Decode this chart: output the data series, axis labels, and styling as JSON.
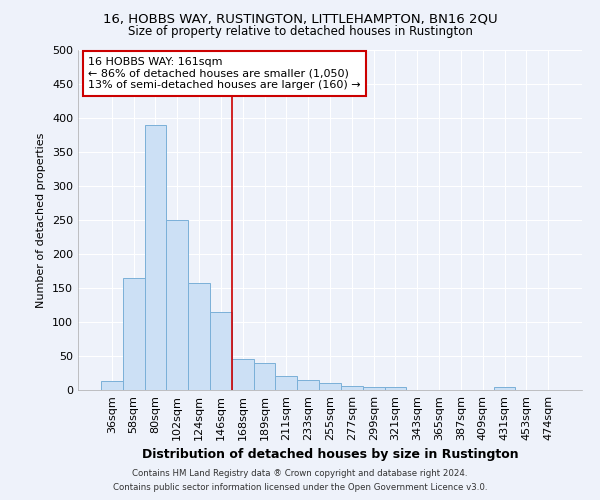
{
  "title": "16, HOBBS WAY, RUSTINGTON, LITTLEHAMPTON, BN16 2QU",
  "subtitle": "Size of property relative to detached houses in Rustington",
  "xlabel": "Distribution of detached houses by size in Rustington",
  "ylabel": "Number of detached properties",
  "footer_line1": "Contains HM Land Registry data ® Crown copyright and database right 2024.",
  "footer_line2": "Contains public sector information licensed under the Open Government Licence v3.0.",
  "categories": [
    "36sqm",
    "58sqm",
    "80sqm",
    "102sqm",
    "124sqm",
    "146sqm",
    "168sqm",
    "189sqm",
    "211sqm",
    "233sqm",
    "255sqm",
    "277sqm",
    "299sqm",
    "321sqm",
    "343sqm",
    "365sqm",
    "387sqm",
    "409sqm",
    "431sqm",
    "453sqm",
    "474sqm"
  ],
  "values": [
    13,
    165,
    390,
    250,
    157,
    115,
    45,
    40,
    20,
    15,
    10,
    6,
    5,
    4,
    0,
    0,
    0,
    0,
    4,
    0,
    0
  ],
  "bar_color": "#cce0f5",
  "bar_edge_color": "#7ab0d8",
  "bar_width": 1.0,
  "vline_x": 6.0,
  "vline_color": "#cc0000",
  "annotation_text": "16 HOBBS WAY: 161sqm\n← 86% of detached houses are smaller (1,050)\n13% of semi-detached houses are larger (160) →",
  "annotation_box_color": "#ffffff",
  "annotation_edge_color": "#cc0000",
  "background_color": "#eef2fa",
  "grid_color": "#ffffff",
  "ylim": [
    0,
    500
  ],
  "yticks": [
    0,
    50,
    100,
    150,
    200,
    250,
    300,
    350,
    400,
    450,
    500
  ],
  "title_fontsize": 9.5,
  "subtitle_fontsize": 8.5,
  "xlabel_fontsize": 9,
  "ylabel_fontsize": 8,
  "tick_fontsize": 8,
  "annotation_fontsize": 8
}
